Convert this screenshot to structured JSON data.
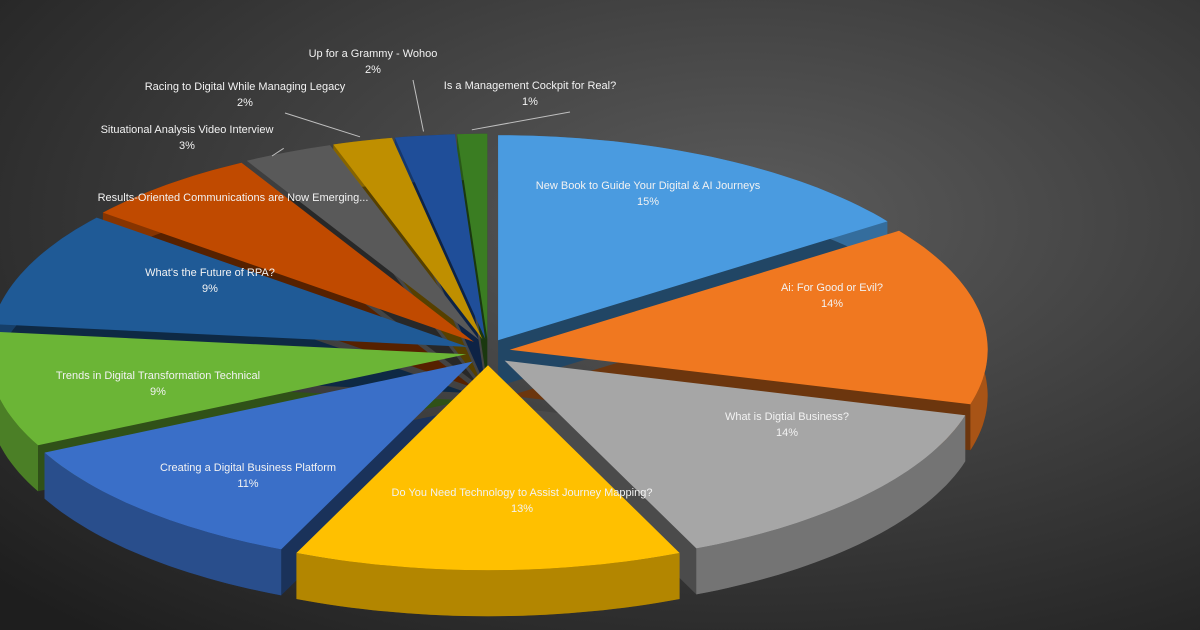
{
  "chart_data": {
    "type": "pie",
    "categories": [
      "New Book to Guide Your Digital & AI Journeys",
      "Ai: For Good or Evil?",
      "What is Digtial Business?",
      "Do You Need Technology to Assist Journey Mapping?",
      "Creating a Digital Business Platform",
      "Trends in Digital Transformation Technical",
      "What's the Future of RPA?",
      "Results-Oriented Communications are Now Emerging...",
      "Situational Analysis Video Interview",
      "Racing to Digital While Managing Legacy",
      "Up for a Grammy - Wohoo",
      "Is a Management Cockpit for Real?"
    ],
    "values": [
      15,
      14,
      14,
      13,
      11,
      9,
      9,
      6,
      3,
      2,
      2,
      1
    ],
    "value_labels": [
      "15%",
      "14%",
      "14%",
      "13%",
      "11%",
      "9%",
      "9%",
      null,
      "3%",
      "2%",
      "2%",
      "1%"
    ],
    "colors": [
      "#4a9be0",
      "#f07820",
      "#a6a6a6",
      "#ffc000",
      "#3a6fc8",
      "#6bb536",
      "#1f5a96",
      "#c04a00",
      "#595959",
      "#bf8f00",
      "#1f4e99",
      "#3a7d22"
    ]
  }
}
